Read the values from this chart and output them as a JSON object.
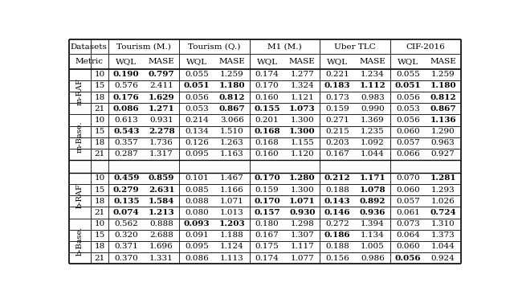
{
  "header_row1": [
    "Datasets",
    "Tourism (M.)",
    "",
    "Tourism (Q.)",
    "",
    "M1 (M.)",
    "",
    "Uber TLC",
    "",
    "CIF-2016",
    ""
  ],
  "header_row2": [
    "Metric",
    "WQL",
    "MASE",
    "WQL",
    "MASE",
    "WQL",
    "MASE",
    "WQL",
    "MASE",
    "WQL",
    "MASE"
  ],
  "sections": [
    {
      "label": "m-RAF",
      "rows": [
        {
          "k": 10,
          "vals": [
            "0.190",
            "0.797",
            "0.055",
            "1.259",
            "0.174",
            "1.277",
            "0.221",
            "1.234",
            "0.055",
            "1.259"
          ]
        },
        {
          "k": 15,
          "vals": [
            "0.576",
            "2.411",
            "0.051",
            "1.180",
            "0.170",
            "1.324",
            "0.183",
            "1.112",
            "0.051",
            "1.180"
          ]
        },
        {
          "k": 18,
          "vals": [
            "0.176",
            "1.629",
            "0.056",
            "0.812",
            "0.160",
            "1.121",
            "0.173",
            "0.983",
            "0.056",
            "0.812"
          ]
        },
        {
          "k": 21,
          "vals": [
            "0.086",
            "1.271",
            "0.053",
            "0.867",
            "0.155",
            "1.073",
            "0.159",
            "0.990",
            "0.053",
            "0.867"
          ]
        }
      ],
      "bold": [
        [
          true,
          true,
          false,
          false,
          false,
          false,
          false,
          false,
          false,
          false
        ],
        [
          false,
          false,
          true,
          true,
          false,
          false,
          true,
          true,
          true,
          true
        ],
        [
          true,
          true,
          false,
          true,
          false,
          false,
          false,
          false,
          false,
          true
        ],
        [
          true,
          true,
          false,
          true,
          true,
          true,
          false,
          false,
          false,
          true
        ]
      ]
    },
    {
      "label": "m-Base.",
      "rows": [
        {
          "k": 10,
          "vals": [
            "0.613",
            "0.931",
            "0.214",
            "3.066",
            "0.201",
            "1.300",
            "0.271",
            "1.369",
            "0.056",
            "1.136"
          ]
        },
        {
          "k": 15,
          "vals": [
            "0.543",
            "2.278",
            "0.134",
            "1.510",
            "0.168",
            "1.300",
            "0.215",
            "1.235",
            "0.060",
            "1.290"
          ]
        },
        {
          "k": 18,
          "vals": [
            "0.357",
            "1.736",
            "0.126",
            "1.263",
            "0.168",
            "1.155",
            "0.203",
            "1.092",
            "0.057",
            "0.963"
          ]
        },
        {
          "k": 21,
          "vals": [
            "0.287",
            "1.317",
            "0.095",
            "1.163",
            "0.160",
            "1.120",
            "0.167",
            "1.044",
            "0.066",
            "0.927"
          ]
        }
      ],
      "bold": [
        [
          false,
          false,
          false,
          false,
          false,
          false,
          false,
          false,
          false,
          true
        ],
        [
          true,
          true,
          false,
          false,
          true,
          true,
          false,
          false,
          false,
          false
        ],
        [
          false,
          false,
          false,
          false,
          false,
          false,
          false,
          false,
          false,
          false
        ],
        [
          false,
          false,
          false,
          false,
          false,
          false,
          false,
          false,
          false,
          false
        ]
      ]
    },
    {
      "label": "b-RAF",
      "rows": [
        {
          "k": 10,
          "vals": [
            "0.459",
            "0.859",
            "0.101",
            "1.467",
            "0.170",
            "1.280",
            "0.212",
            "1.171",
            "0.070",
            "1.281"
          ]
        },
        {
          "k": 15,
          "vals": [
            "0.279",
            "2.631",
            "0.085",
            "1.166",
            "0.159",
            "1.300",
            "0.188",
            "1.078",
            "0.060",
            "1.293"
          ]
        },
        {
          "k": 18,
          "vals": [
            "0.135",
            "1.584",
            "0.088",
            "1.071",
            "0.170",
            "1.071",
            "0.143",
            "0.892",
            "0.057",
            "1.026"
          ]
        },
        {
          "k": 21,
          "vals": [
            "0.074",
            "1.213",
            "0.080",
            "1.013",
            "0.157",
            "0.930",
            "0.146",
            "0.936",
            "0.061",
            "0.724"
          ]
        }
      ],
      "bold": [
        [
          true,
          true,
          false,
          false,
          true,
          true,
          true,
          true,
          false,
          true
        ],
        [
          true,
          true,
          false,
          false,
          false,
          false,
          false,
          true,
          false,
          false
        ],
        [
          true,
          true,
          false,
          false,
          true,
          true,
          true,
          true,
          false,
          false
        ],
        [
          true,
          true,
          false,
          false,
          true,
          true,
          true,
          true,
          false,
          true
        ]
      ]
    },
    {
      "label": "b-Base.",
      "rows": [
        {
          "k": 10,
          "vals": [
            "0.562",
            "0.888",
            "0.093",
            "1.203",
            "0.180",
            "1.298",
            "0.272",
            "1.394",
            "0.073",
            "1.310"
          ]
        },
        {
          "k": 15,
          "vals": [
            "0.320",
            "2.688",
            "0.091",
            "1.188",
            "0.167",
            "1.307",
            "0.186",
            "1.134",
            "0.064",
            "1.373"
          ]
        },
        {
          "k": 18,
          "vals": [
            "0.371",
            "1.696",
            "0.095",
            "1.124",
            "0.175",
            "1.117",
            "0.188",
            "1.005",
            "0.060",
            "1.044"
          ]
        },
        {
          "k": 21,
          "vals": [
            "0.370",
            "1.331",
            "0.086",
            "1.113",
            "0.174",
            "1.077",
            "0.156",
            "0.986",
            "0.056",
            "0.924"
          ]
        }
      ],
      "bold": [
        [
          false,
          false,
          true,
          true,
          false,
          false,
          false,
          false,
          false,
          false
        ],
        [
          false,
          false,
          false,
          false,
          false,
          false,
          true,
          false,
          false,
          false
        ],
        [
          false,
          false,
          false,
          false,
          false,
          false,
          false,
          false,
          false,
          false
        ],
        [
          false,
          false,
          false,
          false,
          false,
          false,
          false,
          false,
          true,
          false
        ]
      ]
    }
  ],
  "bg_color": "#ffffff"
}
